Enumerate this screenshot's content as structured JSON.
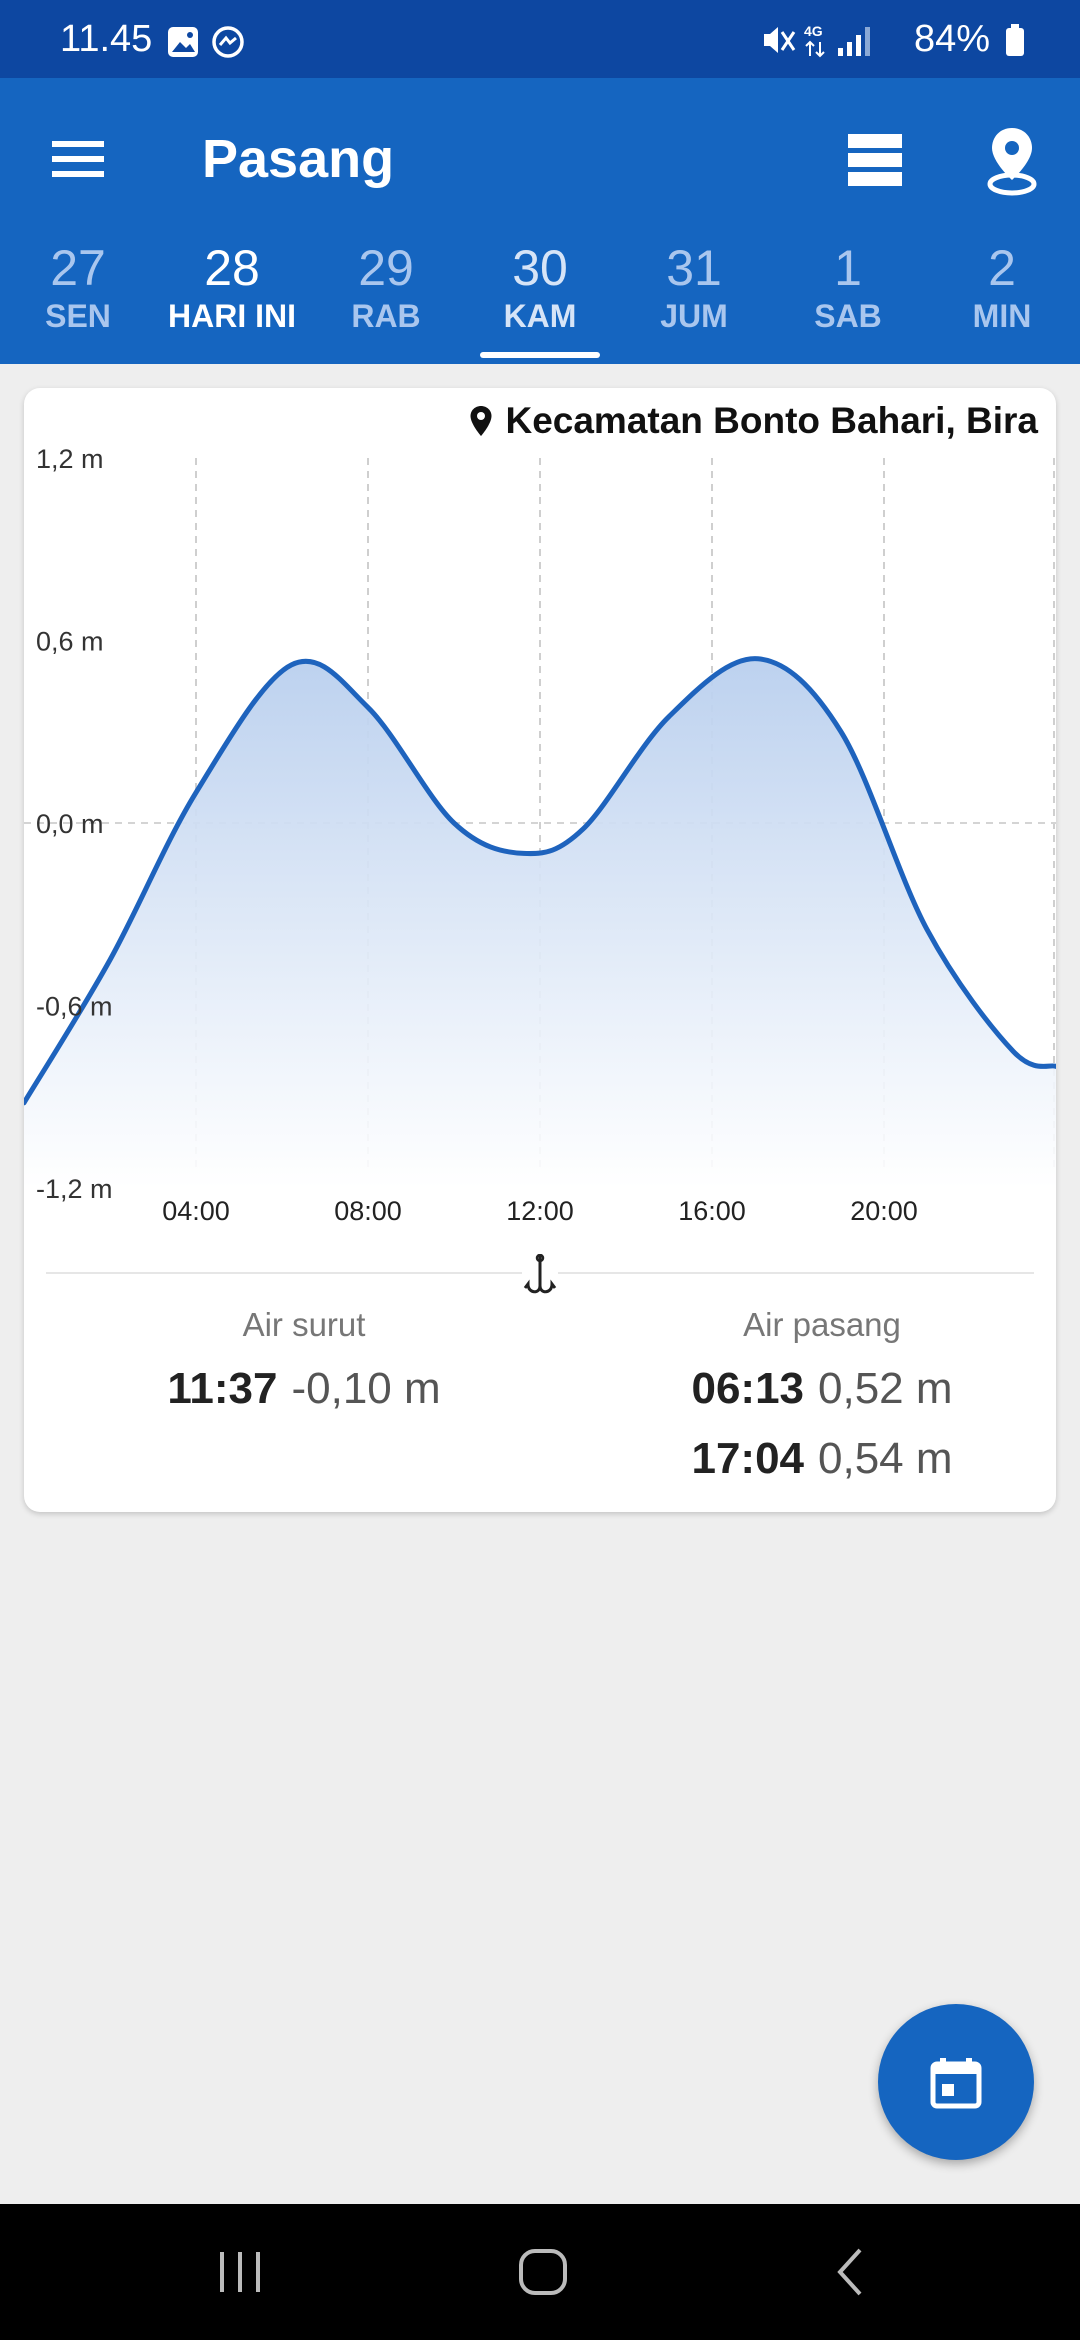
{
  "status_bar": {
    "time": "11.45",
    "battery": "84%",
    "icons": [
      "gallery-icon",
      "messenger-icon",
      "mute-icon",
      "4g-icon",
      "signal-icon",
      "battery-icon"
    ]
  },
  "app_bar": {
    "title": "Pasang",
    "icons": [
      "menu-icon",
      "list-view-icon",
      "location-pin-icon"
    ]
  },
  "days": [
    {
      "num": "27",
      "label": "SEN"
    },
    {
      "num": "28",
      "label": "HARI INI",
      "today": true
    },
    {
      "num": "29",
      "label": "RAB"
    },
    {
      "num": "30",
      "label": "KAM",
      "selected": true
    },
    {
      "num": "31",
      "label": "JUM"
    },
    {
      "num": "1",
      "label": "SAB"
    },
    {
      "num": "2",
      "label": "MIN"
    }
  ],
  "card": {
    "location": "Kecamatan Bonto Bahari, Bira",
    "low_tide": {
      "label": "Air surut",
      "entries": [
        {
          "time": "11:37",
          "value": "-0,10 m"
        }
      ]
    },
    "high_tide": {
      "label": "Air pasang",
      "entries": [
        {
          "time": "06:13",
          "value": "0,52 m"
        },
        {
          "time": "17:04",
          "value": "0,54 m"
        }
      ]
    }
  },
  "chart_data": {
    "type": "area",
    "xlim": [
      0,
      24
    ],
    "ylim": [
      -1.2,
      1.2
    ],
    "x_ticks": [
      4,
      8,
      12,
      16,
      20
    ],
    "x_tick_labels": [
      "04:00",
      "08:00",
      "12:00",
      "16:00",
      "20:00"
    ],
    "y_ticks": [
      1.2,
      0.6,
      0.0,
      -0.6,
      -1.2
    ],
    "y_tick_labels": [
      "1,2 m",
      "0,6 m",
      "0,0 m",
      "-0,6 m",
      "-1,2 m"
    ],
    "grid": "vertical-dashed",
    "series": [
      {
        "x": [
          0,
          2,
          4,
          6.22,
          8,
          10,
          11.62,
          13,
          15,
          17.07,
          19,
          21,
          23,
          24
        ],
        "y": [
          -0.92,
          -0.45,
          0.1,
          0.52,
          0.38,
          0.0,
          -0.1,
          -0.02,
          0.35,
          0.54,
          0.3,
          -0.35,
          -0.75,
          -0.8
        ]
      }
    ],
    "color": "#1e63bd"
  },
  "fab": {
    "icon": "calendar-icon"
  },
  "nav": {
    "icons": [
      "recent-apps-icon",
      "home-icon",
      "back-icon"
    ]
  },
  "colors": {
    "primary": "#1565c0",
    "status": "#0d47a1",
    "line": "#1e63bd"
  }
}
